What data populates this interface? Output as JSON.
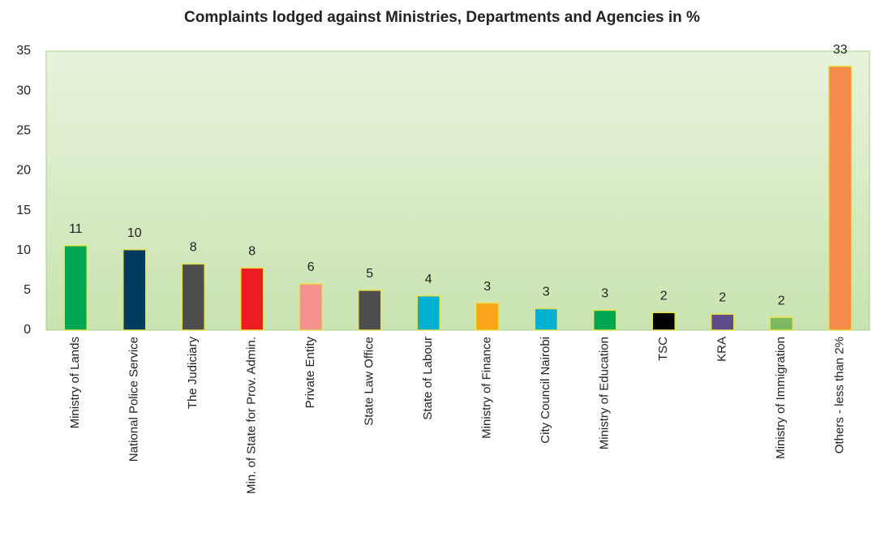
{
  "chart_data": {
    "type": "bar",
    "title": "Complaints lodged against Ministries, Departments and Agencies in %",
    "categories": [
      "Ministry of Lands",
      "National Police Service",
      "The Judiciary",
      "Min. of State for Prov. Admin.",
      "Private Entity",
      "State Law Office",
      "State of Labour",
      "Ministry of Finance",
      "City Council Nairobi",
      "Ministry of Education",
      "TSC",
      "KRA",
      "Ministry of Immigration",
      "Others - less than 2%"
    ],
    "values": [
      10.6,
      10.1,
      8.3,
      7.8,
      5.8,
      5.0,
      4.3,
      3.4,
      2.7,
      2.5,
      2.2,
      2.0,
      1.6,
      33.1
    ],
    "value_labels": [
      "11",
      "10",
      "8",
      "8",
      "6",
      "5",
      "4",
      "3",
      "3",
      "3",
      "2",
      "2",
      "2",
      "33"
    ],
    "colors": [
      "#00a651",
      "#003a5c",
      "#4d4d4d",
      "#ed1c24",
      "#f4908e",
      "#4d4d4d",
      "#00b0d0",
      "#f9a51a",
      "#00b0d0",
      "#00a651",
      "#000000",
      "#5c4a8a",
      "#7cb860",
      "#f68c4b"
    ],
    "ylim": [
      0,
      35
    ],
    "yticks": [
      0,
      5,
      10,
      15,
      20,
      25,
      30,
      35
    ],
    "grid": false
  }
}
